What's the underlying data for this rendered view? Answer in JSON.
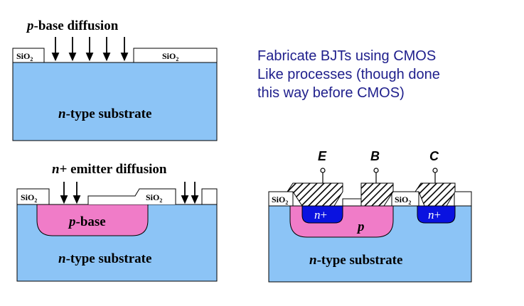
{
  "diagram1": {
    "title_italic": "p",
    "title_rest": "-base diffusion",
    "oxide_left": "SiO",
    "oxide_left_sub": "2",
    "oxide_right": "SiO",
    "oxide_right_sub": "2",
    "substrate_italic": "n",
    "substrate_rest": "-type substrate"
  },
  "diagram2": {
    "title_italic": "n",
    "title_rest": "+ emitter diffusion",
    "oxide_left": "SiO",
    "oxide_left_sub": "2",
    "oxide_right": "SiO",
    "oxide_right_sub": "2",
    "base_italic": "p",
    "base_rest": "-base",
    "substrate_italic": "n",
    "substrate_rest": "-type substrate"
  },
  "diagram3": {
    "terminal_e": "E",
    "terminal_b": "B",
    "terminal_c": "C",
    "oxide_left": "SiO",
    "oxide_left_sub": "2",
    "oxide_right": "SiO",
    "oxide_right_sub": "2",
    "emitter_italic": "n",
    "emitter_rest": "+",
    "base_label": "p",
    "collector_italic": "n",
    "collector_rest": "+",
    "substrate_italic": "n",
    "substrate_rest": "-type substrate"
  },
  "description": {
    "line1": "Fabricate BJTs using CMOS",
    "line2": "Like processes (though done",
    "line3": "this way before CMOS)"
  },
  "colors": {
    "substrate": "#8cc4f6",
    "p_region": "#f07cc8",
    "n_plus": "#0a12e0",
    "text_blue": "#1f1f8c"
  }
}
